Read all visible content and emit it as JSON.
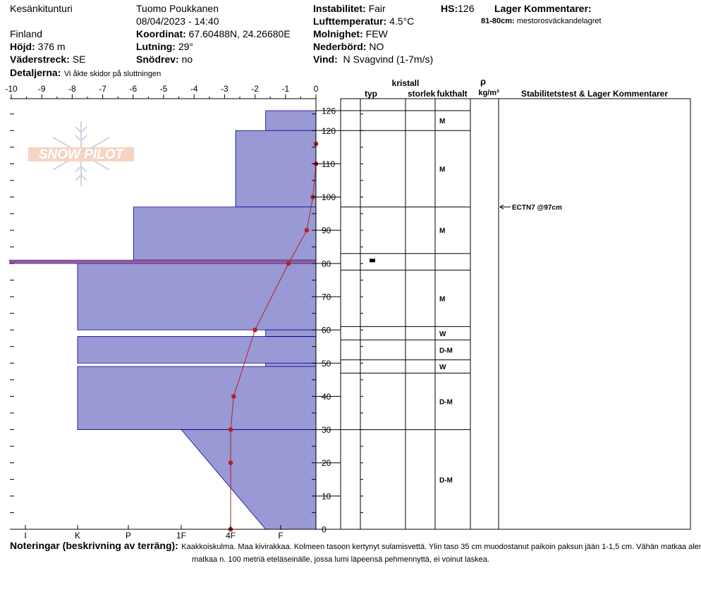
{
  "header": {
    "location": "Kesänkitunturi",
    "observer": "Tuomo Poukkanen",
    "datetime": "08/04/2023 - 14:40",
    "country": "Finland",
    "coords_label": "Koordinat:",
    "coords": "67.60488N, 24.26680E",
    "elevation_label": "Höjd:",
    "elevation": "376 m",
    "slope_label": "Lutning:",
    "slope": "29°",
    "aspect_label": "Väderstreck:",
    "aspect": "SE",
    "drift_label": "Snödrev:",
    "drift": "no",
    "details_label": "Detaljerna:",
    "details": "Vi åkte skidor på sluttningen",
    "stability_label": "Instabilitet:",
    "stability": "Fair",
    "airtemp_label": "Lufttemperatur:",
    "airtemp": "4.5°C",
    "sky_label": "Molnighet:",
    "sky": "FEW",
    "precip_label": "Nederbörd:",
    "precip": "NO",
    "wind_label": "Vind:",
    "wind": "N Svagvind (1-7m/s)",
    "hs_label": "HS:",
    "hs": "126",
    "layer_comments_label": "Lager Kommentarer:",
    "layer_comment_range": "81-80cm:",
    "layer_comment": "mestorosväckandelagret"
  },
  "logo_text": "SNOW PILOT",
  "columns": {
    "type": "typ",
    "crystal": "kristall",
    "size": "storlek",
    "moisture": "fukthalt",
    "rho": "ρ",
    "density_unit": "kg/m³",
    "stability": "Stabilitetstest & Lager Kommentarer"
  },
  "notes": {
    "label": "Noteringar (beskrivning av terräng):",
    "line1": "Kaakkoiskulma. Maa kivirakkaa. Kolmeen tasoon kertynyt sulamisvettä. Ylin taso 35 cm muodostanut paikoin paksun jään 1-1,5 cm. Vähän matkaa alempana",
    "line2": "matkaa n. 100 metriä eteläseinälle, jossa lumi läpeensä pehmennyttä, ei voinut laskea."
  },
  "colors": {
    "hardness": "#9999d6",
    "hardness_edge": "#00008b",
    "temperature": "#b22222",
    "ice": "#dc143c"
  },
  "chart_data": {
    "type": "snow_profile",
    "temp_axis": {
      "label_values": [
        -10,
        -9,
        -8,
        -7,
        -6,
        -5,
        -4,
        -3,
        -2,
        -1,
        0
      ],
      "range": [
        -10,
        0
      ]
    },
    "depth_axis": {
      "label_values": [
        0,
        10,
        20,
        30,
        40,
        50,
        60,
        70,
        80,
        90,
        100,
        110,
        120,
        126
      ],
      "range": [
        0,
        126
      ]
    },
    "hardness_labels": [
      "I",
      "K",
      "P",
      "1F",
      "4F",
      "F"
    ],
    "hardness_layers": [
      {
        "top": 126,
        "bottom": 120,
        "hardness_index": 4.7
      },
      {
        "top": 120,
        "bottom": 97,
        "hardness_index": 4.1
      },
      {
        "top": 97,
        "bottom": 81,
        "hardness_index": 2.1
      },
      {
        "top": 81,
        "bottom": 80,
        "hardness_index": -0.3,
        "ice": true
      },
      {
        "top": 80,
        "bottom": 60,
        "hardness_index": 1.0
      },
      {
        "top": 60,
        "bottom": 58,
        "hardness_index": 4.7
      },
      {
        "top": 58,
        "bottom": 50,
        "hardness_index": 1.0
      },
      {
        "top": 50,
        "bottom": 49,
        "hardness_index": 4.7
      },
      {
        "top": 49,
        "bottom": 30,
        "hardness_index": 1.0
      },
      {
        "top": 30,
        "bottom": 0,
        "hardness_top": 3.0,
        "hardness_bottom": 4.7
      }
    ],
    "temperature_profile": [
      {
        "depth": 116,
        "temp": 0.0
      },
      {
        "depth": 110,
        "temp": 0.0
      },
      {
        "depth": 100,
        "temp": -0.1
      },
      {
        "depth": 90,
        "temp": -0.3
      },
      {
        "depth": 80,
        "temp": -0.9
      },
      {
        "depth": 60,
        "temp": -2.0
      },
      {
        "depth": 40,
        "temp": -2.7
      },
      {
        "depth": 30,
        "temp": -2.8
      },
      {
        "depth": 20,
        "temp": -2.8
      },
      {
        "depth": 0,
        "temp": -2.8
      }
    ],
    "layers": [
      {
        "top": 126,
        "bottom": 120,
        "moisture": "M"
      },
      {
        "top": 120,
        "bottom": 97,
        "moisture": "M"
      },
      {
        "top": 97,
        "bottom": 83,
        "moisture": "M"
      },
      {
        "top": 83,
        "bottom": 78,
        "moisture": ""
      },
      {
        "top": 78,
        "bottom": 61,
        "moisture": "M"
      },
      {
        "top": 61,
        "bottom": 57,
        "moisture": "W"
      },
      {
        "top": 57,
        "bottom": 51,
        "moisture": "D-M"
      },
      {
        "top": 51,
        "bottom": 47,
        "moisture": "W"
      },
      {
        "top": 47,
        "bottom": 30,
        "moisture": "D-M"
      },
      {
        "top": 30,
        "bottom": 0,
        "moisture": "D-M"
      }
    ],
    "stability_tests": [
      {
        "depth": 97,
        "label": "ECTN7 @97cm"
      }
    ]
  }
}
